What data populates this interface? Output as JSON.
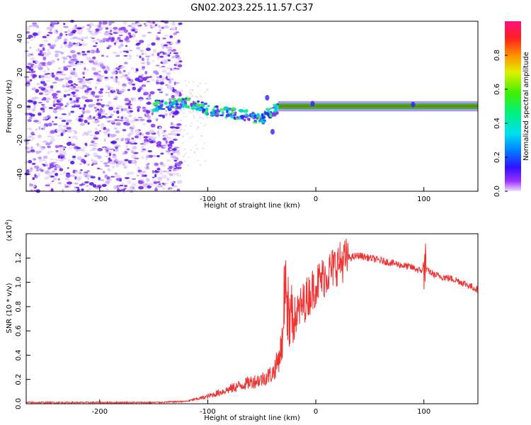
{
  "title": "GN02.2023.225.11.57.C37",
  "colors": {
    "signal": "#ee3333",
    "spectral_dots": "#8a3cf0",
    "background": "#ffffff"
  },
  "chart_data": [
    {
      "type": "heatmap",
      "title": "GN02.2023.225.11.57.C37",
      "xlabel": "Height of straight line (km)",
      "ylabel": "Frequency (Hz)",
      "xlim": [
        -268,
        150
      ],
      "ylim": [
        -50,
        50
      ],
      "xticks": [
        -200,
        -100,
        0,
        100
      ],
      "yticks": [
        -40,
        -20,
        0,
        20,
        40
      ],
      "colorbar": {
        "label": "Normalized spectral amplitude",
        "range": [
          0,
          1
        ],
        "ticks": [
          0.0,
          0.2,
          0.4,
          0.6,
          0.8
        ],
        "colormap": "rainbow"
      },
      "noise_region_x": [
        -268,
        -125
      ],
      "trace": {
        "x": [
          -150,
          -130,
          -120,
          -110,
          -100,
          -90,
          -80,
          -70,
          -60,
          -50,
          -45,
          -40,
          -35,
          -30,
          -20,
          -10,
          0,
          50,
          90,
          100,
          150
        ],
        "y": [
          0,
          2,
          2,
          1,
          -2,
          -3,
          -4,
          -5,
          -6,
          -8,
          -4,
          -3,
          -1,
          0,
          0,
          0,
          0,
          0,
          0,
          0,
          0
        ]
      },
      "carrier_x": [
        -35,
        150
      ]
    },
    {
      "type": "line",
      "xlabel": "Height of straight line (km)",
      "ylabel": "SNR (10 * v/v)",
      "scale_note": "(x10",
      "scale_exp": "4",
      "multiplier": 10000,
      "xlim": [
        -268,
        150
      ],
      "ylim": [
        0,
        1.4
      ],
      "xticks": [
        -200,
        -100,
        0,
        100
      ],
      "yticks": [
        0.0,
        0.2,
        0.4,
        0.6,
        0.8,
        1.0,
        1.2
      ],
      "series": [
        {
          "x": [
            -268,
            -200,
            -150,
            -120,
            -100,
            -80,
            -60,
            -50,
            -40,
            -35,
            -30,
            -28,
            -25,
            -20,
            -10,
            0,
            10,
            20,
            30,
            40,
            50,
            60,
            70,
            80,
            90,
            95,
            100,
            105,
            110,
            120,
            130,
            140,
            150
          ],
          "y": [
            0.01,
            0.01,
            0.01,
            0.02,
            0.06,
            0.12,
            0.18,
            0.2,
            0.25,
            0.35,
            0.55,
            0.95,
            0.5,
            0.7,
            0.85,
            0.98,
            1.07,
            1.15,
            1.2,
            1.22,
            1.2,
            1.18,
            1.16,
            1.14,
            1.12,
            1.1,
            1.1,
            1.09,
            1.06,
            1.04,
            1.02,
            0.98,
            0.94
          ]
        }
      ]
    }
  ]
}
